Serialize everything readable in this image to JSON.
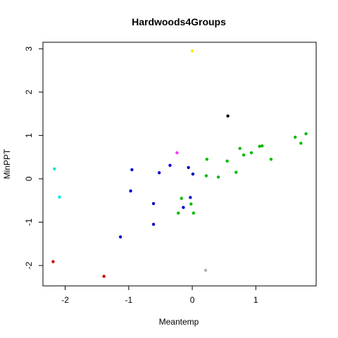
{
  "chart_data": {
    "type": "scatter",
    "title": "Hardwoods4Groups",
    "xlabel": "Meantemp",
    "ylabel": "MinPPT",
    "xlim": [
      -2.35,
      1.95
    ],
    "ylim": [
      -2.47,
      3.15
    ],
    "xticks": [
      -2,
      -1,
      0,
      1
    ],
    "yticks": [
      -2,
      -1,
      0,
      1,
      2,
      3
    ],
    "grid": false,
    "legend": "none",
    "series": [
      {
        "color": "#0000cc",
        "points": [
          {
            "x": -0.95,
            "y": 0.21
          },
          {
            "x": -0.97,
            "y": -0.28
          },
          {
            "x": -0.52,
            "y": 0.14
          },
          {
            "x": -0.35,
            "y": 0.31
          },
          {
            "x": -0.06,
            "y": 0.26
          },
          {
            "x": 0.01,
            "y": 0.11
          },
          {
            "x": -0.61,
            "y": -0.57
          },
          {
            "x": -0.61,
            "y": -1.05
          },
          {
            "x": -1.13,
            "y": -1.34
          },
          {
            "x": -0.14,
            "y": -0.66
          },
          {
            "x": -0.03,
            "y": -0.43
          }
        ]
      },
      {
        "color": "#00bb00",
        "points": [
          {
            "x": -0.17,
            "y": -0.45
          },
          {
            "x": -0.22,
            "y": -0.79
          },
          {
            "x": 0.02,
            "y": -0.79
          },
          {
            "x": -0.02,
            "y": -0.58
          },
          {
            "x": 0.22,
            "y": 0.07
          },
          {
            "x": 0.23,
            "y": 0.45
          },
          {
            "x": 0.41,
            "y": 0.04
          },
          {
            "x": 0.55,
            "y": 0.41
          },
          {
            "x": 0.69,
            "y": 0.15
          },
          {
            "x": 0.75,
            "y": 0.7
          },
          {
            "x": 0.81,
            "y": 0.55
          },
          {
            "x": 0.93,
            "y": 0.6
          },
          {
            "x": 1.06,
            "y": 0.75
          },
          {
            "x": 1.1,
            "y": 0.76
          },
          {
            "x": 1.24,
            "y": 0.45
          },
          {
            "x": 1.62,
            "y": 0.96
          },
          {
            "x": 1.71,
            "y": 0.82
          },
          {
            "x": 1.79,
            "y": 1.04
          }
        ]
      },
      {
        "color": "#00e5e5",
        "points": [
          {
            "x": -2.17,
            "y": 0.23
          },
          {
            "x": -2.09,
            "y": -0.42
          }
        ]
      },
      {
        "color": "#cc0000",
        "points": [
          {
            "x": -2.19,
            "y": -1.91
          }
        ]
      },
      {
        "color": "#cc0000",
        "points": [
          {
            "x": -1.39,
            "y": -2.25
          }
        ]
      },
      {
        "color": "#ff33ff",
        "points": [
          {
            "x": -0.24,
            "y": 0.6
          }
        ]
      },
      {
        "color": "#000000",
        "points": [
          {
            "x": 0.56,
            "y": 1.45
          }
        ]
      },
      {
        "color": "#ffee00",
        "points": [
          {
            "x": 0.0,
            "y": 2.95
          }
        ]
      },
      {
        "color": "#b0b0b0",
        "points": [
          {
            "x": 0.21,
            "y": -2.11
          }
        ]
      }
    ]
  }
}
